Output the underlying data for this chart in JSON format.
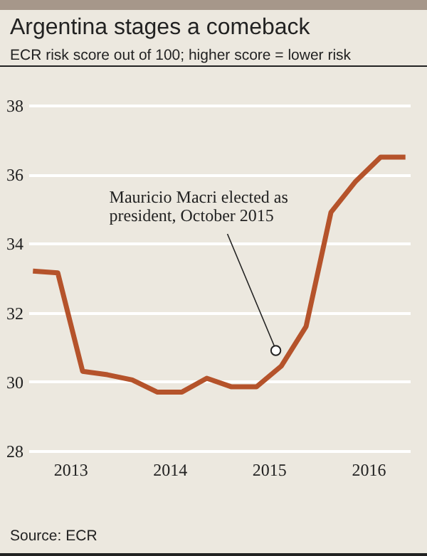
{
  "chart_data": {
    "type": "line",
    "title": "Argentina stages a comeback",
    "subtitle": "ECR risk score out of 100; higher score = lower risk",
    "x": [
      2013.125,
      2013.375,
      2013.625,
      2013.875,
      2014.125,
      2014.375,
      2014.625,
      2014.875,
      2015.125,
      2015.375,
      2015.625,
      2015.875,
      2016.125,
      2016.375,
      2016.625,
      2016.875
    ],
    "series": [
      {
        "color": "#b5532b",
        "values": [
          33.2,
          33.15,
          30.3,
          30.2,
          30.05,
          29.7,
          29.7,
          30.1,
          29.85,
          29.85,
          30.45,
          31.6,
          34.9,
          35.8,
          36.5,
          36.5
        ]
      }
    ],
    "xlim": [
      2013.08,
      2016.92
    ],
    "xticks": [
      {
        "value": 2013.5,
        "label": "2013"
      },
      {
        "value": 2014.5,
        "label": "2014"
      },
      {
        "value": 2015.5,
        "label": "2015"
      },
      {
        "value": 2016.5,
        "label": "2016"
      }
    ],
    "ylim": [
      28,
      38
    ],
    "yticks": [
      28,
      30,
      32,
      34,
      36,
      38
    ],
    "grid": "y",
    "annotations": [
      {
        "text": "Mauricio Macri elected as\npresident, October 2015",
        "x": 2015.57,
        "y": 30.9
      },
      "Source: ECR"
    ]
  }
}
